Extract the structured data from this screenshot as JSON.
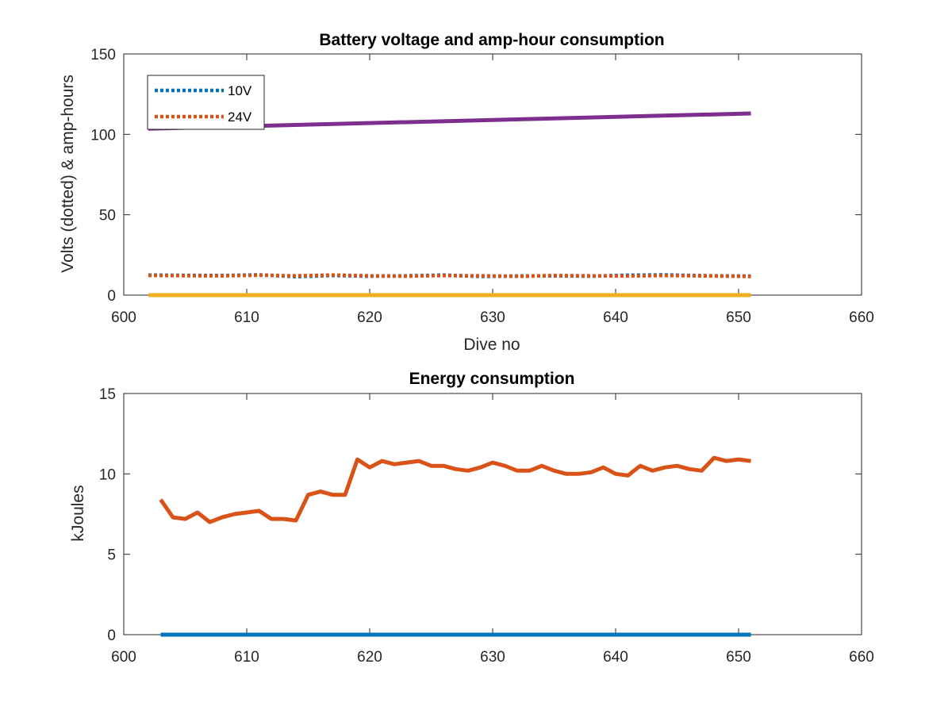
{
  "chart_data": [
    {
      "type": "line",
      "title": "Battery voltage and amp-hour consumption",
      "xlabel": "Dive no",
      "ylabel": "Volts (dotted) & amp-hours",
      "xlim": [
        600,
        660
      ],
      "ylim": [
        0,
        150
      ],
      "xticks": [
        "600",
        "610",
        "620",
        "630",
        "640",
        "650",
        "660"
      ],
      "yticks": [
        "0",
        "50",
        "100",
        "150"
      ],
      "grid": false,
      "legend_position": "top-left",
      "series": [
        {
          "name": "10V",
          "style": "dotted",
          "color": "#0072BD",
          "x": [
            602,
            605,
            608,
            611,
            614,
            617,
            620,
            623,
            626,
            629,
            632,
            635,
            638,
            641,
            644,
            647,
            651
          ],
          "y": [
            12.5,
            12.3,
            12.2,
            12.6,
            11.5,
            12.2,
            11.8,
            12.0,
            12.5,
            11.6,
            11.9,
            12.0,
            11.8,
            12.4,
            12.6,
            12.1,
            11.8
          ]
        },
        {
          "name": "24V",
          "style": "dotted",
          "color": "#D95319",
          "x": [
            602,
            605,
            608,
            611,
            614,
            617,
            620,
            623,
            626,
            629,
            632,
            635,
            638,
            641,
            644,
            647,
            651
          ],
          "y": [
            12.3,
            12.1,
            12.0,
            12.4,
            12.0,
            12.5,
            12.0,
            11.8,
            12.2,
            12.0,
            11.7,
            12.2,
            12.0,
            11.9,
            12.2,
            12.0,
            11.6
          ]
        },
        {
          "style": "solid",
          "color": "#EDB120",
          "x": [
            602,
            651
          ],
          "y": [
            0,
            0
          ]
        },
        {
          "style": "solid",
          "color": "#7E2F8E",
          "x": [
            602,
            651
          ],
          "y": [
            103.5,
            113
          ]
        }
      ]
    },
    {
      "type": "line",
      "title": "Energy consumption",
      "xlabel": "",
      "ylabel": "kJoules",
      "xlim": [
        600,
        660
      ],
      "ylim": [
        0,
        15
      ],
      "xticks": [
        "600",
        "610",
        "620",
        "630",
        "640",
        "650",
        "660"
      ],
      "yticks": [
        "0",
        "5",
        "10",
        "15"
      ],
      "grid": false,
      "series": [
        {
          "style": "solid",
          "color": "#0072BD",
          "x": [
            603,
            651
          ],
          "y": [
            0,
            0
          ]
        },
        {
          "style": "solid",
          "color": "#D95319",
          "x": [
            603,
            604,
            605,
            606,
            607,
            608,
            609,
            610,
            611,
            612,
            613,
            614,
            615,
            616,
            617,
            618,
            619,
            620,
            621,
            622,
            623,
            624,
            625,
            626,
            627,
            628,
            629,
            630,
            631,
            632,
            633,
            634,
            635,
            636,
            637,
            638,
            639,
            640,
            641,
            642,
            643,
            644,
            645,
            646,
            647,
            648,
            649,
            650,
            651
          ],
          "y": [
            8.4,
            7.3,
            7.2,
            7.6,
            7.0,
            7.3,
            7.5,
            7.6,
            7.7,
            7.2,
            7.2,
            7.1,
            8.7,
            8.9,
            8.7,
            8.7,
            10.9,
            10.4,
            10.8,
            10.6,
            10.7,
            10.8,
            10.5,
            10.5,
            10.3,
            10.2,
            10.4,
            10.7,
            10.5,
            10.2,
            10.2,
            10.5,
            10.2,
            10.0,
            10.0,
            10.1,
            10.4,
            10.0,
            9.9,
            10.5,
            10.2,
            10.4,
            10.5,
            10.3,
            10.2,
            11.0,
            10.8,
            10.9,
            10.8
          ]
        }
      ]
    }
  ]
}
